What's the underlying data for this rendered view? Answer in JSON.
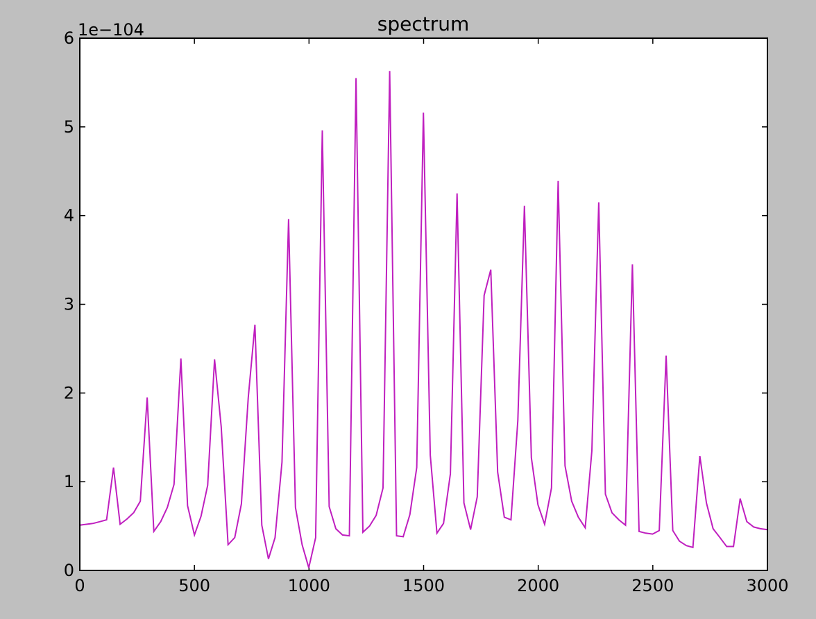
{
  "chart_data": {
    "type": "line",
    "title": "spectrum",
    "xlabel": "",
    "ylabel": "",
    "y_offset_label": "1e−104",
    "xlim": [
      0,
      3000
    ],
    "ylim": [
      0,
      6
    ],
    "y_scale_factor": "1e-104",
    "xticks": [
      0,
      500,
      1000,
      1500,
      2000,
      2500,
      3000
    ],
    "xtick_labels": [
      "0",
      "500",
      "1000",
      "1500",
      "2000",
      "2500",
      "3000"
    ],
    "yticks": [
      0,
      1,
      2,
      3,
      4,
      5,
      6
    ],
    "ytick_labels": [
      "0",
      "1",
      "2",
      "3",
      "4",
      "5",
      "6"
    ],
    "grid": false,
    "line_color": "#bf1fbf",
    "series": [
      {
        "x": [
          0,
          29,
          59,
          88,
          117,
          147,
          176,
          206,
          235,
          264,
          294,
          323,
          353,
          382,
          411,
          441,
          470,
          500,
          529,
          558,
          588,
          617,
          647,
          676,
          705,
          735,
          764,
          794,
          823,
          852,
          882,
          911,
          941,
          970,
          999,
          1029,
          1058,
          1088,
          1117,
          1146,
          1176,
          1205,
          1235,
          1264,
          1293,
          1323,
          1352,
          1382,
          1411,
          1440,
          1470,
          1499,
          1529,
          1558,
          1587,
          1617,
          1646,
          1676,
          1705,
          1734,
          1764,
          1793,
          1823,
          1852,
          1881,
          1911,
          1940,
          1970,
          1999,
          2028,
          2058,
          2087,
          2117,
          2146,
          2175,
          2205,
          2234,
          2264,
          2293,
          2322,
          2352,
          2381,
          2411,
          2440,
          2469,
          2499,
          2528,
          2558,
          2587,
          2616,
          2646,
          2675,
          2705,
          2734,
          2763,
          2793,
          2822,
          2852,
          2881,
          2910,
          2940,
          2969,
          3000
        ],
        "y": [
          0.51,
          0.52,
          0.53,
          0.55,
          0.57,
          1.16,
          0.52,
          0.58,
          0.65,
          0.78,
          1.95,
          0.44,
          0.55,
          0.71,
          0.97,
          2.39,
          0.73,
          0.4,
          0.61,
          0.96,
          2.38,
          1.62,
          0.29,
          0.37,
          0.75,
          1.95,
          2.77,
          0.51,
          0.13,
          0.37,
          1.22,
          3.96,
          0.71,
          0.29,
          0.03,
          0.37,
          4.96,
          0.72,
          0.47,
          0.4,
          0.39,
          5.55,
          0.43,
          0.5,
          0.62,
          0.93,
          5.63,
          0.39,
          0.38,
          0.63,
          1.16,
          5.16,
          1.3,
          0.42,
          0.53,
          1.09,
          4.25,
          0.76,
          0.46,
          0.83,
          3.1,
          3.39,
          1.11,
          0.6,
          0.57,
          1.69,
          4.11,
          1.27,
          0.74,
          0.52,
          0.93,
          4.39,
          1.18,
          0.78,
          0.6,
          0.48,
          1.35,
          4.15,
          0.86,
          0.65,
          0.57,
          0.51,
          3.45,
          0.44,
          0.42,
          0.41,
          0.45,
          2.42,
          0.45,
          0.33,
          0.28,
          0.26,
          1.29,
          0.76,
          0.47,
          0.37,
          0.27,
          0.27,
          0.81,
          0.55,
          0.49,
          0.47,
          0.46
        ]
      }
    ]
  }
}
